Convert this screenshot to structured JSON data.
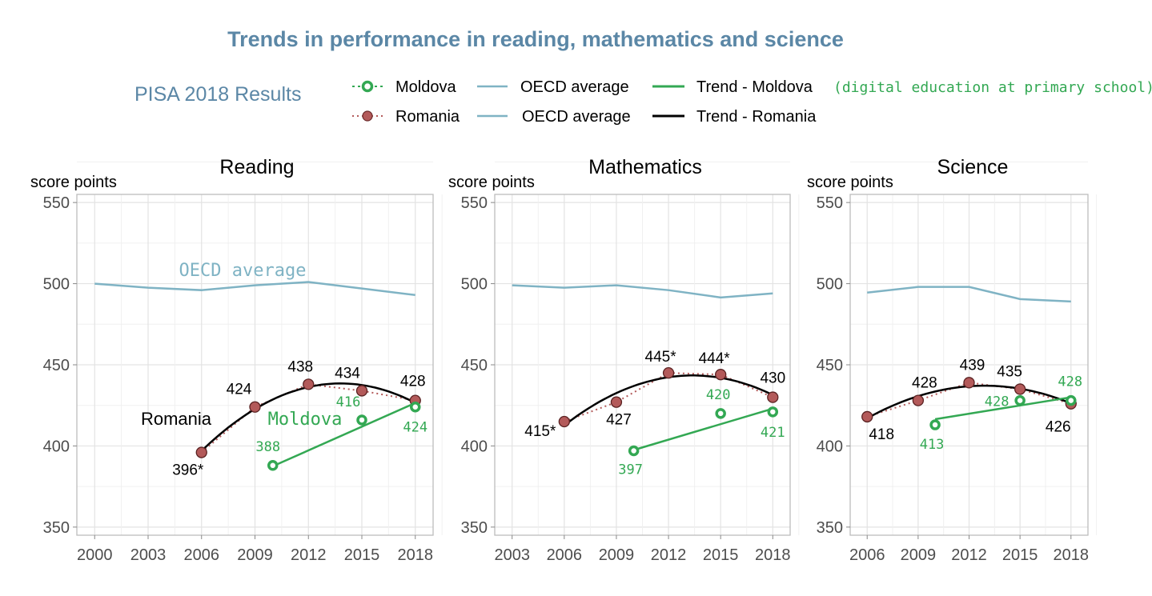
{
  "header": {
    "title": "Trends in performance in reading, mathematics and science",
    "subtitle": "PISA 2018 Results"
  },
  "legend": {
    "moldova": "Moldova",
    "romania": "Romania",
    "oecd_1": "OECD average",
    "oecd_2": "OECD average",
    "trend_moldova": "Trend - Moldova",
    "trend_romania": "Trend - Romania",
    "note": "(digital education at primary school)"
  },
  "colors": {
    "title": "#5b87a6",
    "oecd": "#7fb3c4",
    "romania_fill": "#b35a5a",
    "moldova": "#33a853",
    "trend_romania": "#000000",
    "grid": "#e3e3e3",
    "frame": "#bdbdbd"
  },
  "chart_data": [
    {
      "type": "line",
      "title": "Reading",
      "ylabel": "score points",
      "ylim": [
        345,
        555
      ],
      "yticks": [
        "350",
        "400",
        "450",
        "500",
        "550"
      ],
      "xlim": [
        1999,
        2019
      ],
      "xticks": [
        "2000",
        "2003",
        "2006",
        "2009",
        "2012",
        "2015",
        "2018"
      ],
      "grid": true,
      "annotations": {
        "oecd": "OECD average",
        "romania": "Romania",
        "moldova": "Moldova"
      },
      "series": [
        {
          "name": "OECD average",
          "x": [
            2000,
            2003,
            2006,
            2009,
            2012,
            2015,
            2018
          ],
          "values": [
            500,
            497.5,
            496,
            499,
            501,
            497,
            493
          ]
        },
        {
          "name": "Romania",
          "x": [
            2006,
            2009,
            2012,
            2015,
            2018
          ],
          "values": [
            396,
            424,
            438,
            434,
            428
          ],
          "labels": [
            "396*",
            "424",
            "438",
            "434",
            "428"
          ]
        },
        {
          "name": "Moldova",
          "x": [
            2010,
            2015,
            2018
          ],
          "values": [
            388,
            416,
            424
          ],
          "labels": [
            "388",
            "416",
            "424"
          ]
        }
      ],
      "trend_romania": {
        "a": -0.4286,
        "b": 0.0492
      },
      "trend_moldova": {
        "x": [
          2010,
          2018
        ],
        "values": [
          387.5,
          426.5
        ]
      }
    },
    {
      "type": "line",
      "title": "Mathematics",
      "ylabel": "score points",
      "ylim": [
        345,
        555
      ],
      "yticks": [
        "350",
        "400",
        "450",
        "500",
        "550"
      ],
      "xlim": [
        2002,
        2019
      ],
      "xticks": [
        "2003",
        "2006",
        "2009",
        "2012",
        "2015",
        "2018"
      ],
      "grid": true,
      "series": [
        {
          "name": "OECD average",
          "x": [
            2003,
            2006,
            2009,
            2012,
            2015,
            2018
          ],
          "values": [
            499,
            497.5,
            499,
            496,
            491.5,
            494
          ]
        },
        {
          "name": "Romania",
          "x": [
            2006,
            2009,
            2012,
            2015,
            2018
          ],
          "values": [
            415,
            427,
            445,
            444,
            430
          ],
          "labels": [
            "415*",
            "427",
            "445*",
            "444*",
            "430"
          ]
        },
        {
          "name": "Moldova",
          "x": [
            2010,
            2015,
            2018
          ],
          "values": [
            397,
            420,
            421
          ],
          "labels": [
            "397",
            "420",
            "421"
          ]
        }
      ],
      "trend_romania": {
        "a": -0.5286,
        "b": 0.0492
      },
      "trend_moldova": {
        "x": [
          2010,
          2018
        ],
        "values": [
          397.5,
          423
        ]
      }
    },
    {
      "type": "line",
      "title": "Science",
      "ylabel": "score points",
      "ylim": [
        345,
        555
      ],
      "yticks": [
        "350",
        "400",
        "450",
        "500",
        "550"
      ],
      "xlim": [
        2005,
        2019
      ],
      "xticks": [
        "2006",
        "2009",
        "2012",
        "2015",
        "2018"
      ],
      "grid": true,
      "series": [
        {
          "name": "OECD average",
          "x": [
            2006,
            2009,
            2012,
            2015,
            2018
          ],
          "values": [
            494.5,
            498,
            498,
            490.5,
            489
          ]
        },
        {
          "name": "Romania",
          "x": [
            2006,
            2009,
            2012,
            2015,
            2018
          ],
          "values": [
            418,
            428,
            439,
            435,
            426
          ],
          "labels": [
            "418",
            "428",
            "439",
            "435",
            "426"
          ]
        },
        {
          "name": "Moldova",
          "x": [
            2010,
            2015,
            2018
          ],
          "values": [
            413,
            428,
            428
          ],
          "labels": [
            "413",
            "428",
            "428"
          ]
        }
      ],
      "trend_romania": {
        "a": -0.3528,
        "b": 0.0432
      },
      "trend_moldova": {
        "x": [
          2010,
          2018
        ],
        "values": [
          416.5,
          430
        ]
      }
    }
  ]
}
